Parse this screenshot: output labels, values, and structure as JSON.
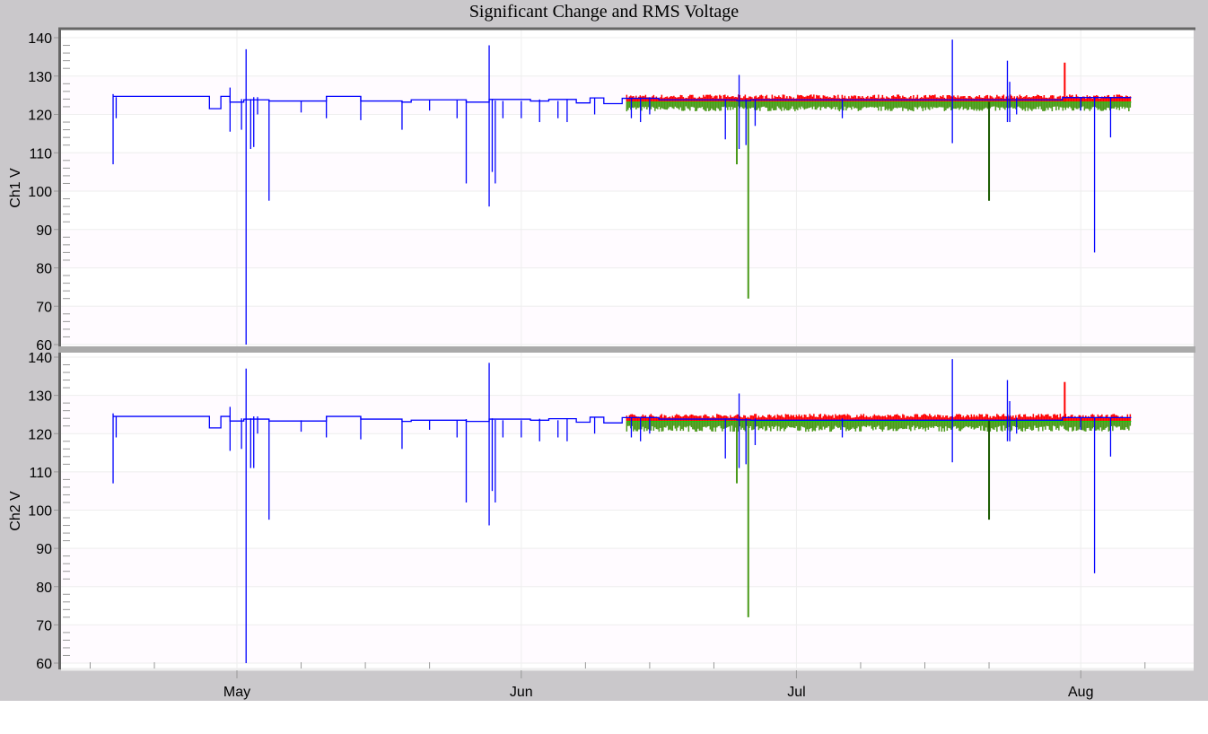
{
  "title": "Significant Change and RMS Voltage",
  "colors": {
    "significant_change": "#0000ff",
    "rms_max": "#ff0000",
    "rms_min": "#4a9a1a",
    "rms_avg": "#00dd00",
    "spike_dark": "#1a5a00",
    "frame": "#cac8cb",
    "plot_bg": "#fffbff",
    "axis": "#666666",
    "grid": "#eeeeee"
  },
  "chart_data": [
    {
      "type": "line",
      "ylabel": "Ch1 V",
      "ylim": [
        60,
        140
      ],
      "yticks": [
        "140",
        "130",
        "120",
        "110",
        "100",
        "90",
        "80",
        "70",
        "60"
      ],
      "xticks": [
        {
          "date": "05-01",
          "label": "May"
        },
        {
          "date": "06-01",
          "label": "Jun"
        },
        {
          "date": "07-01",
          "label": "Jul"
        },
        {
          "date": "08-01",
          "label": "Aug"
        }
      ],
      "xlim": [
        "04-12",
        "08-15"
      ],
      "grid": true,
      "significant_change": {
        "levels": [
          [
            "04-17 12:00",
            124.7
          ],
          [
            "04-28 00:00",
            121.5
          ],
          [
            "04-29 06:00",
            124.7
          ],
          [
            "04-30 06:00",
            123.2
          ],
          [
            "05-01 18:00",
            123.8
          ],
          [
            "05-04 12:00",
            123.5
          ],
          [
            "05-10 18:00",
            124.7
          ],
          [
            "05-14 12:00",
            123.5
          ],
          [
            "05-19 00:00",
            123.2
          ],
          [
            "05-20 00:00",
            123.8
          ],
          [
            "05-26 00:00",
            123.2
          ],
          [
            "05-28 12:00",
            123.9
          ],
          [
            "06-02 00:00",
            123.5
          ],
          [
            "06-04 00:00",
            123.9
          ],
          [
            "06-07 00:00",
            123.0
          ],
          [
            "06-08 12:00",
            124.3
          ],
          [
            "06-10 00:00",
            122.8
          ],
          [
            "06-12 00:00",
            124.2
          ],
          [
            "06-16 00:00",
            123.8
          ],
          [
            "06-24 12:00",
            123.6
          ],
          [
            "06-26 00:00",
            123.8
          ],
          [
            "07-30 00:00",
            124.4
          ],
          [
            "08-06 12:00",
            124.4
          ]
        ],
        "spikes": [
          [
            "04-17 12:00",
            107,
            125.3
          ],
          [
            "04-17 20:00",
            119,
            124.5
          ],
          [
            "04-30 06:00",
            115.5,
            127
          ],
          [
            "05-01 12:00",
            116,
            124
          ],
          [
            "05-02 00:00",
            60,
            137
          ],
          [
            "05-02 12:00",
            111,
            124
          ],
          [
            "05-02 20:00",
            111.5,
            124.5
          ],
          [
            "05-03 06:00",
            120,
            124.5
          ],
          [
            "05-04 12:00",
            97.5,
            123.8
          ],
          [
            "05-08 00:00",
            120.5,
            123.5
          ],
          [
            "05-10 18:00",
            119,
            124.7
          ],
          [
            "05-14 12:00",
            118.5,
            124.7
          ],
          [
            "05-19 00:00",
            116,
            123.5
          ],
          [
            "05-22 00:00",
            121,
            123.7
          ],
          [
            "05-25 00:00",
            119,
            123.7
          ],
          [
            "05-26 00:00",
            102,
            123.8
          ],
          [
            "05-28 12:00",
            96,
            138
          ],
          [
            "05-28 20:00",
            105,
            124
          ],
          [
            "05-29 04:00",
            102,
            123.6
          ],
          [
            "05-30 00:00",
            119,
            123.5
          ],
          [
            "06-01 00:00",
            119,
            123.5
          ],
          [
            "06-03 00:00",
            118,
            123.9
          ],
          [
            "06-05 00:00",
            119,
            123.5
          ],
          [
            "06-06 00:00",
            118,
            123.8
          ],
          [
            "06-09 00:00",
            120,
            124.3
          ],
          [
            "06-13 00:00",
            119,
            124.2
          ],
          [
            "06-14 00:00",
            118,
            124.4
          ],
          [
            "06-15 00:00",
            120,
            124.5
          ],
          [
            "06-23 06:00",
            113.5,
            124
          ],
          [
            "06-24 18:00",
            111,
            130.3
          ],
          [
            "06-25 12:00",
            112,
            124
          ],
          [
            "06-26 12:00",
            117,
            124
          ],
          [
            "07-06 00:00",
            119,
            124
          ],
          [
            "07-18 00:00",
            112.5,
            139.5
          ],
          [
            "07-24 00:00",
            118,
            134
          ],
          [
            "07-24 06:00",
            118,
            128.5
          ],
          [
            "08-02 12:00",
            84,
            124.4
          ],
          [
            "08-04 06:00",
            114,
            124.4
          ],
          [
            "08-01 00:00",
            121,
            124.4
          ],
          [
            "07-25 00:00",
            120,
            124.4
          ]
        ]
      },
      "rms": {
        "start": "06-12 12:00",
        "end": "08-06 12:00",
        "max_range": [
          123.3,
          125.2
        ],
        "min_range": [
          120.8,
          123.3
        ],
        "spikes": [
          {
            "series": "rms_min",
            "date": "06-24 12:00",
            "value": 107
          },
          {
            "series": "rms_min",
            "date": "06-25 18:00",
            "value": 72
          },
          {
            "series": "spike_dark",
            "date": "07-22 00:00",
            "value": 97.5
          },
          {
            "series": "rms_max",
            "date": "07-30 06:00",
            "value": 133.5
          }
        ]
      }
    },
    {
      "type": "line",
      "ylabel": "Ch2 V",
      "ylim": [
        60,
        140
      ],
      "yticks": [
        "140",
        "130",
        "120",
        "110",
        "100",
        "90",
        "80",
        "70",
        "60"
      ],
      "xticks": [
        {
          "date": "05-01",
          "label": "May"
        },
        {
          "date": "06-01",
          "label": "Jun"
        },
        {
          "date": "07-01",
          "label": "Jul"
        },
        {
          "date": "08-01",
          "label": "Aug"
        }
      ],
      "xlim": [
        "04-12",
        "08-15"
      ],
      "grid": true,
      "significant_change": {
        "levels": [
          [
            "04-17 12:00",
            124.5
          ],
          [
            "04-28 00:00",
            121.5
          ],
          [
            "04-29 06:00",
            124.5
          ],
          [
            "04-30 06:00",
            123.3
          ],
          [
            "05-01 18:00",
            123.8
          ],
          [
            "05-04 12:00",
            123.3
          ],
          [
            "05-10 18:00",
            124.5
          ],
          [
            "05-14 12:00",
            123.8
          ],
          [
            "05-19 00:00",
            123.2
          ],
          [
            "05-20 00:00",
            123.5
          ],
          [
            "05-26 00:00",
            123.2
          ],
          [
            "05-28 12:00",
            123.8
          ],
          [
            "06-02 00:00",
            123.5
          ],
          [
            "06-04 00:00",
            123.9
          ],
          [
            "06-07 00:00",
            123.0
          ],
          [
            "06-08 12:00",
            124.3
          ],
          [
            "06-10 00:00",
            122.8
          ],
          [
            "06-12 00:00",
            124.2
          ],
          [
            "06-16 00:00",
            123.8
          ],
          [
            "06-24 12:00",
            123.6
          ],
          [
            "06-26 00:00",
            123.5
          ],
          [
            "07-30 00:00",
            124.2
          ],
          [
            "08-06 12:00",
            124.2
          ]
        ],
        "spikes": [
          [
            "04-17 12:00",
            107,
            125.3
          ],
          [
            "04-17 20:00",
            119,
            124.5
          ],
          [
            "04-30 06:00",
            115.5,
            127
          ],
          [
            "05-01 12:00",
            116,
            124
          ],
          [
            "05-02 00:00",
            58,
            137
          ],
          [
            "05-02 12:00",
            111,
            124
          ],
          [
            "05-02 20:00",
            111,
            124.5
          ],
          [
            "05-03 06:00",
            120,
            124.5
          ],
          [
            "05-04 12:00",
            97.5,
            123.8
          ],
          [
            "05-08 00:00",
            120.5,
            123.5
          ],
          [
            "05-10 18:00",
            119,
            124.5
          ],
          [
            "05-14 12:00",
            118.5,
            124.5
          ],
          [
            "05-19 00:00",
            116,
            123.5
          ],
          [
            "05-22 00:00",
            121,
            123.5
          ],
          [
            "05-25 00:00",
            119,
            123.5
          ],
          [
            "05-26 00:00",
            102,
            123.8
          ],
          [
            "05-28 12:00",
            96,
            138.5
          ],
          [
            "05-28 20:00",
            105,
            124
          ],
          [
            "05-29 04:00",
            102,
            123.6
          ],
          [
            "05-30 00:00",
            119,
            123.5
          ],
          [
            "06-01 00:00",
            119,
            123.5
          ],
          [
            "06-03 00:00",
            118,
            123.9
          ],
          [
            "06-05 00:00",
            119,
            123.5
          ],
          [
            "06-06 00:00",
            118,
            123.8
          ],
          [
            "06-09 00:00",
            120,
            124.3
          ],
          [
            "06-13 00:00",
            119,
            124.2
          ],
          [
            "06-14 00:00",
            118,
            124.4
          ],
          [
            "06-15 00:00",
            120,
            124.5
          ],
          [
            "06-23 06:00",
            113.5,
            124
          ],
          [
            "06-24 18:00",
            111,
            130.5
          ],
          [
            "06-25 12:00",
            112,
            124
          ],
          [
            "06-26 12:00",
            117,
            124
          ],
          [
            "07-06 00:00",
            119,
            124
          ],
          [
            "07-18 00:00",
            112.5,
            139.5
          ],
          [
            "07-24 00:00",
            118,
            134
          ],
          [
            "07-24 06:00",
            118,
            128.5
          ],
          [
            "08-02 12:00",
            83.5,
            124.2
          ],
          [
            "08-04 06:00",
            114,
            124.2
          ],
          [
            "08-01 00:00",
            121,
            124.2
          ],
          [
            "07-25 00:00",
            120,
            124.2
          ]
        ]
      },
      "rms": {
        "start": "06-12 12:00",
        "end": "08-06 12:00",
        "max_range": [
          123.3,
          125.2
        ],
        "min_range": [
          120.5,
          123.3
        ],
        "spikes": [
          {
            "series": "rms_min",
            "date": "06-24 12:00",
            "value": 107
          },
          {
            "series": "rms_min",
            "date": "06-25 18:00",
            "value": 72
          },
          {
            "series": "spike_dark",
            "date": "07-22 00:00",
            "value": 97.5
          },
          {
            "series": "rms_max",
            "date": "07-30 06:00",
            "value": 133.5
          }
        ]
      }
    }
  ]
}
